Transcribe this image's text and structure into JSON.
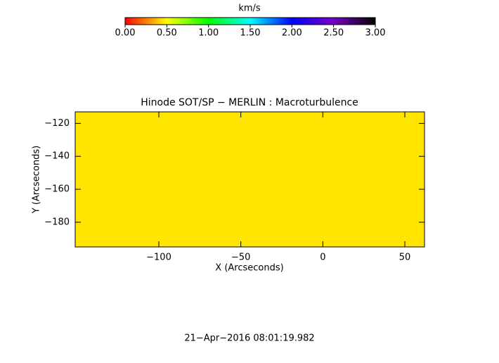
{
  "chart_data": {
    "type": "heatmap",
    "title": "Hinode SOT/SP − MERLIN : Macroturbulence",
    "x_label": "X (Arcseconds)",
    "y_label": "Y (Arcseconds)",
    "footer": "21−Apr−2016 08:01:19.982",
    "z": [
      [
        0.45
      ]
    ],
    "xlim": [
      -151,
      62
    ],
    "xticks": [
      {
        "value": -100,
        "label": "−100"
      },
      {
        "value": -50,
        "label": "−50"
      },
      0,
      50
    ],
    "ylim": [
      -195,
      -113
    ],
    "yticks": [
      {
        "value": -120,
        "label": "−120"
      },
      {
        "value": -140,
        "label": "−140"
      },
      {
        "value": -160,
        "label": "−160"
      },
      {
        "value": -180,
        "label": "−180"
      }
    ],
    "colorbar": {
      "title": "km/s",
      "clim": [
        0,
        3
      ],
      "ticks": [
        {
          "value": 0,
          "label": "0.00"
        },
        {
          "value": 0.5,
          "label": "0.50"
        },
        {
          "value": 1,
          "label": "1.00"
        },
        {
          "value": 1.5,
          "label": "1.50"
        },
        {
          "value": 2,
          "label": "2.00"
        },
        {
          "value": 2.5,
          "label": "2.50"
        },
        {
          "value": 3,
          "label": "3.00"
        }
      ],
      "colors": [
        "#ff0000",
        "#ffff00",
        "#00ff00",
        "#00ffff",
        "#0000ff",
        "#7a00c8",
        "#000000"
      ]
    }
  }
}
